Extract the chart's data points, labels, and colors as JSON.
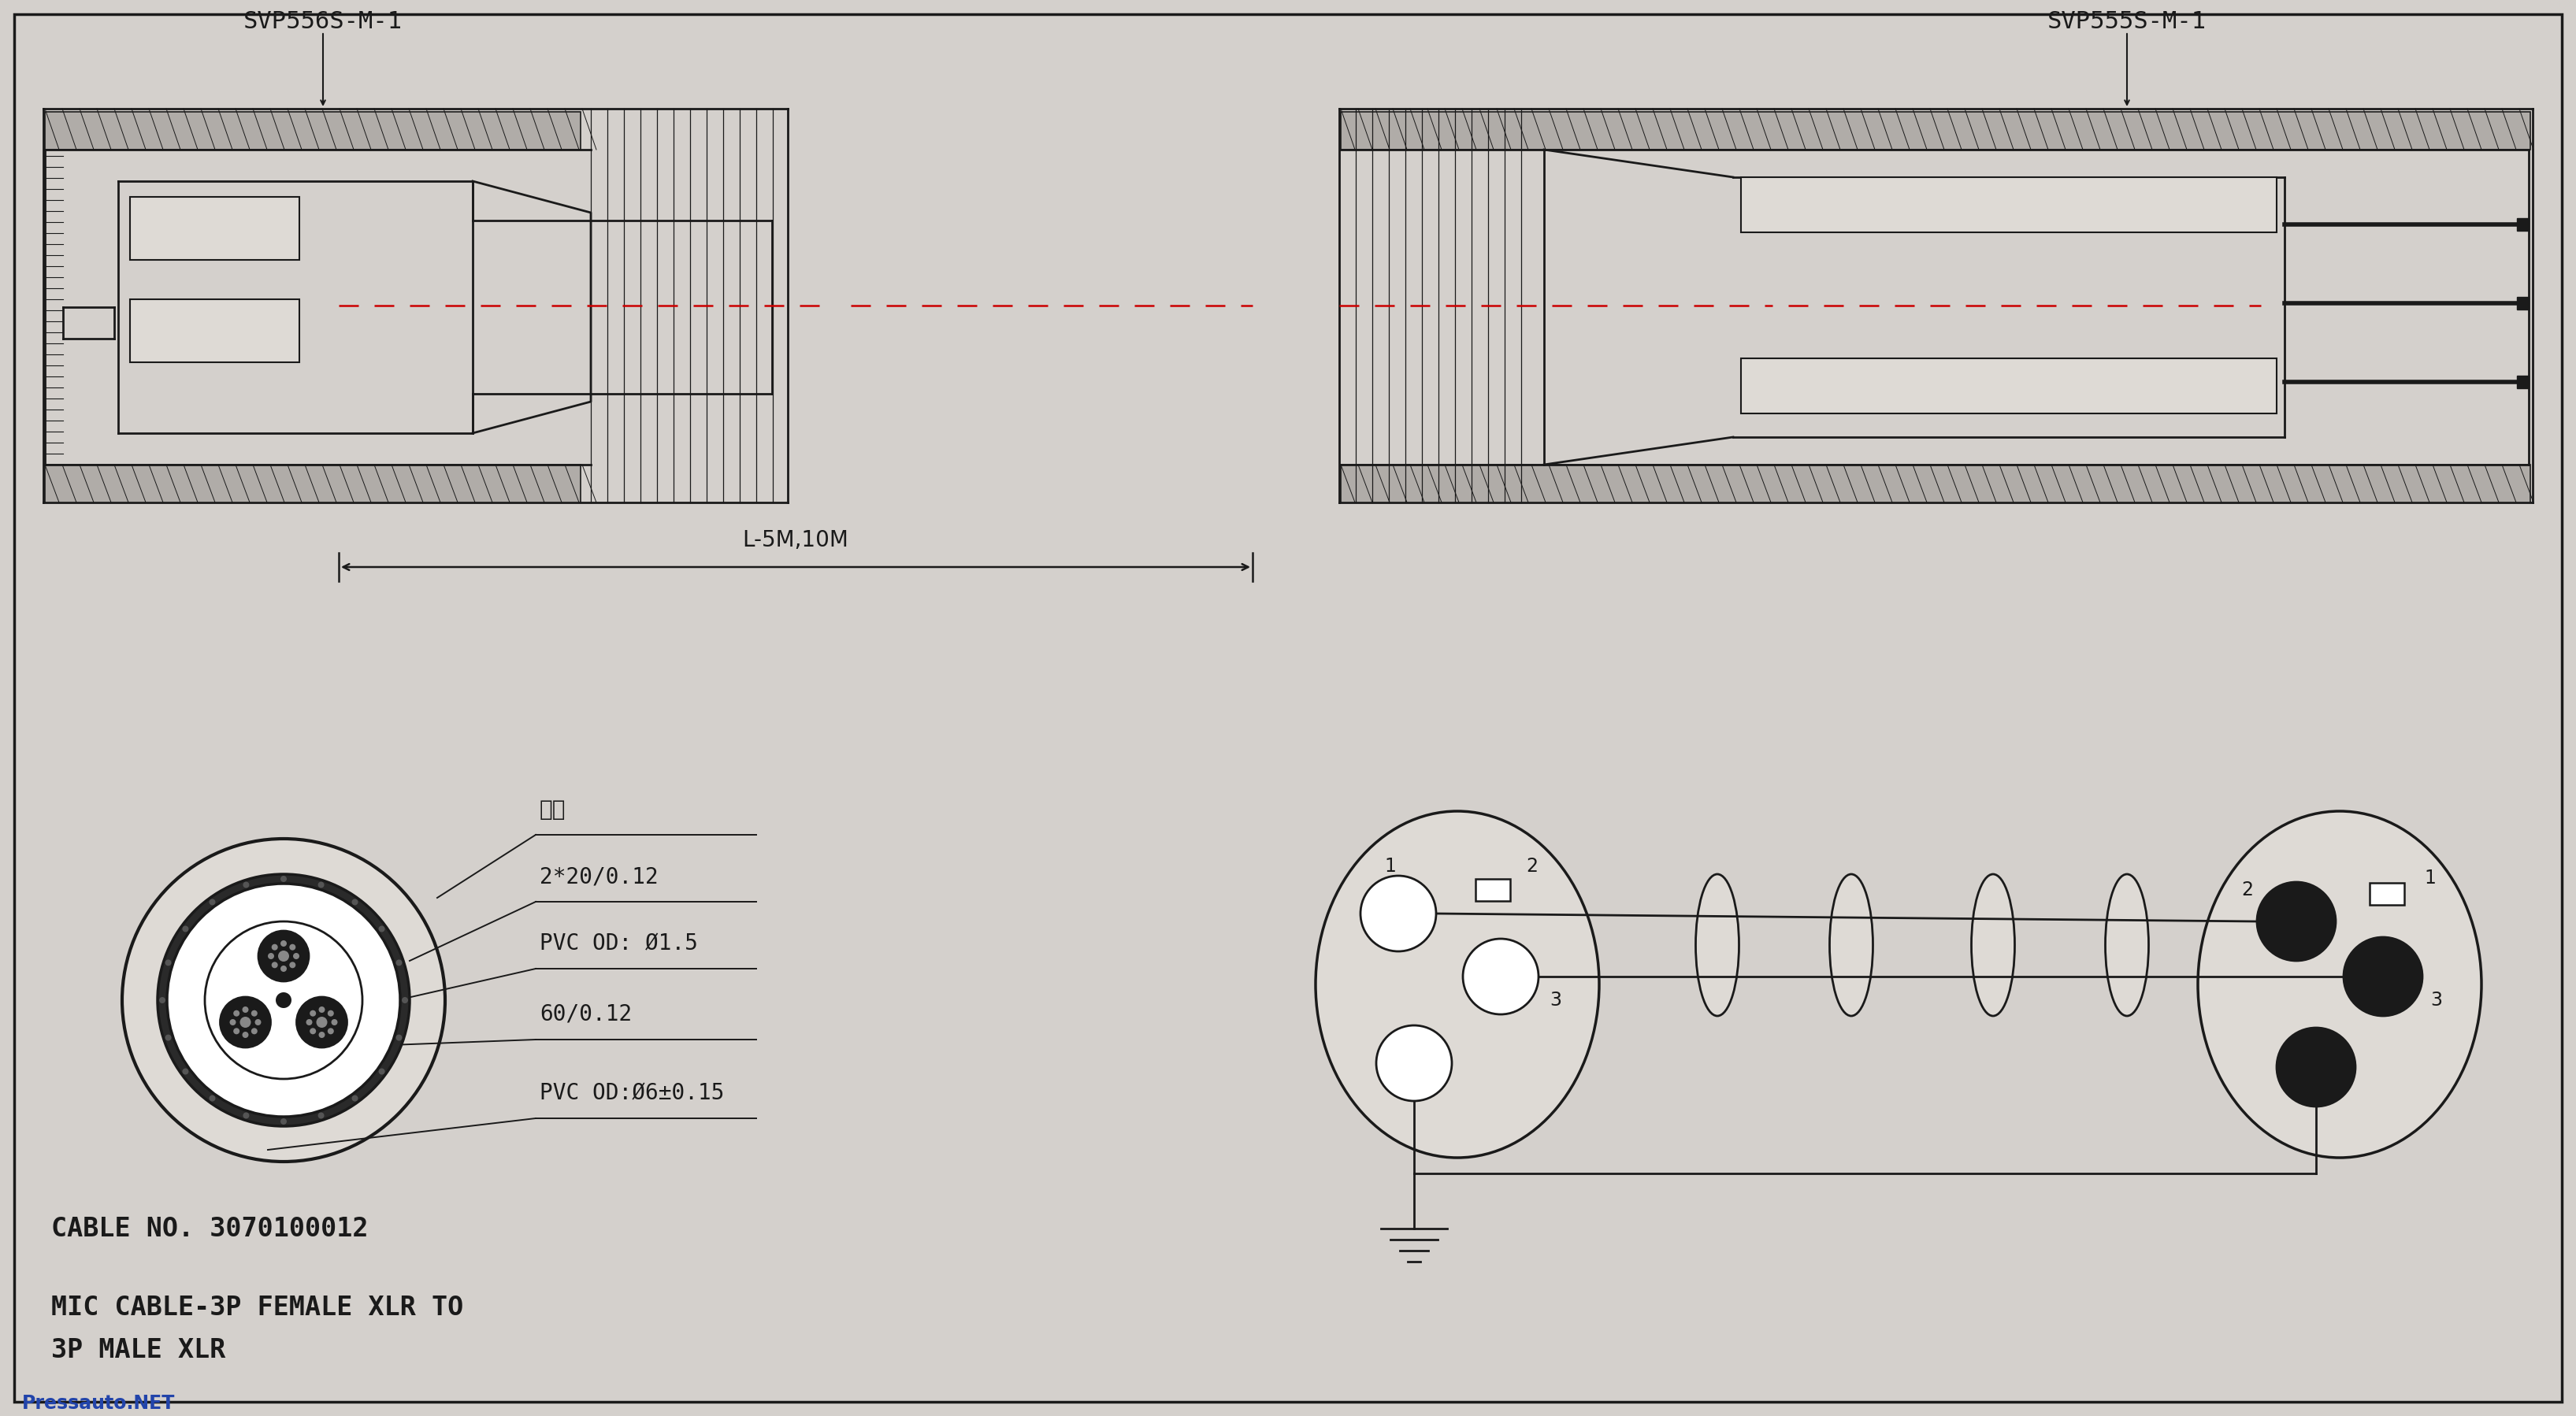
{
  "bg_color": "#d4d0cc",
  "line_color": "#1a1a1a",
  "border_color": "#1a1a1a",
  "title_left": "SVP556S-M-1",
  "title_right": "SVP555S-M-1",
  "label_cable_no": "CABLE NO. 3070100012",
  "label_mic_line1": "MIC CABLE-3P FEMALE XLR TO",
  "label_mic_line2": "3P MALE XLR",
  "label_mian": "棉线",
  "label_2x20": "2*20/0.12",
  "label_pvc15": "PVC OD: Ø1.5",
  "label_60": "60/0.12",
  "label_pvc6": "PVC OD:Ø6±0.15",
  "label_length": "L-5M,10M",
  "pressauto": "Pressauto.NET",
  "watermark_color": "#2244aa",
  "red_dash": "#cc0000"
}
